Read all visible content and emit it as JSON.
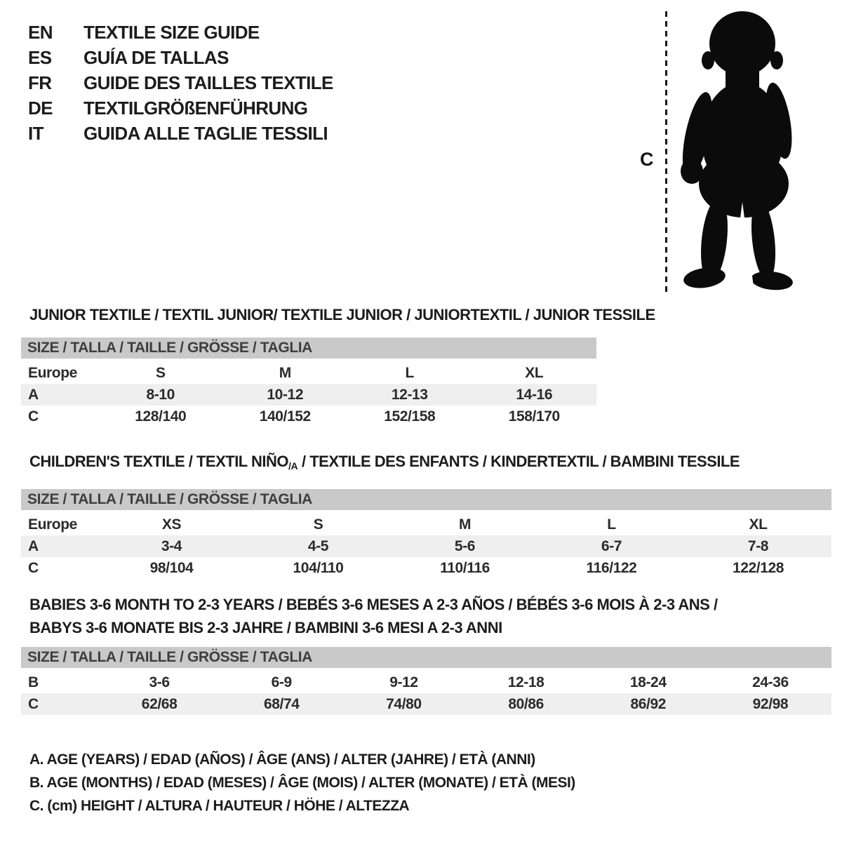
{
  "colors": {
    "background": "#ffffff",
    "text": "#1c1c1c",
    "size_bar_bg": "#c9c9c9",
    "size_bar_text": "#3e3e3e",
    "shaded_row_bg": "#efefef",
    "silhouette": "#0b0b0b"
  },
  "languages": [
    {
      "code": "EN",
      "title": "TEXTILE SIZE GUIDE"
    },
    {
      "code": "ES",
      "title": "GUÍA DE TALLAS"
    },
    {
      "code": "FR",
      "title": "GUIDE DES TAILLES TEXTILE"
    },
    {
      "code": "DE",
      "title": "TEXTILGRÖßENFÜHRUNG"
    },
    {
      "code": "IT",
      "title": "GUIDA ALLE TAGLIE TESSILI"
    }
  ],
  "figure": {
    "height_label": "C",
    "icon": "baby-silhouette"
  },
  "sections": [
    {
      "id": "junior",
      "title_lines": [
        [
          {
            "t": "JUNIOR TEXTILE / TEXTIL JUNIOR/ TEXTILE JUNIOR / JUNIORTEXTIL / JUNIOR TESSILE",
            "sub": false
          }
        ]
      ],
      "size_header": "SIZE / TALLA / TAILLE / GRÖSSE / TAGLIA",
      "rows": [
        {
          "label": "Europe",
          "values": [
            "S",
            "M",
            "L",
            "XL"
          ],
          "shaded": false
        },
        {
          "label": "A",
          "values": [
            "8-10",
            "10-12",
            "12-13",
            "14-16"
          ],
          "shaded": true
        },
        {
          "label": "C",
          "values": [
            "128/140",
            "140/152",
            "152/158",
            "158/170"
          ],
          "shaded": false
        }
      ]
    },
    {
      "id": "children",
      "title_lines": [
        [
          {
            "t": "CHILDREN'S TEXTILE / TEXTIL NIÑO",
            "sub": false
          },
          {
            "t": "/A",
            "sub": true
          },
          {
            "t": " / TEXTILE DES ENFANTS / KINDERTEXTIL / BAMBINI TESSILE",
            "sub": false
          }
        ]
      ],
      "size_header": "SIZE / TALLA / TAILLE / GRÖSSE / TAGLIA",
      "rows": [
        {
          "label": "Europe",
          "values": [
            "XS",
            "S",
            "M",
            "L",
            "XL"
          ],
          "shaded": false
        },
        {
          "label": "A",
          "values": [
            "3-4",
            "4-5",
            "5-6",
            "6-7",
            "7-8"
          ],
          "shaded": true
        },
        {
          "label": "C",
          "values": [
            "98/104",
            "104/110",
            "110/116",
            "116/122",
            "122/128"
          ],
          "shaded": false
        }
      ]
    },
    {
      "id": "babies",
      "title_lines": [
        [
          {
            "t": "BABIES 3-6 MONTH TO 2-3 YEARS / BEBÉS 3-6 MESES A 2-3 AÑOS / BÉBÉS 3-6 MOIS À 2-3 ANS /",
            "sub": false
          }
        ],
        [
          {
            "t": "BABYS 3-6 MONATE BIS 2-3 JAHRE / BAMBINI 3-6 MESI A 2-3 ANNI",
            "sub": false
          }
        ]
      ],
      "size_header": "SIZE / TALLA / TAILLE / GRÖSSE / TAGLIA",
      "rows": [
        {
          "label": "B",
          "values": [
            "3-6",
            "6-9",
            "9-12",
            "12-18",
            "18-24",
            "24-36"
          ],
          "shaded": false
        },
        {
          "label": "C",
          "values": [
            "62/68",
            "68/74",
            "74/80",
            "80/86",
            "86/92",
            "92/98"
          ],
          "shaded": true
        }
      ]
    }
  ],
  "legend": [
    "A. AGE (YEARS) / EDAD (AÑOS) / ÂGE (ANS) / ALTER (JAHRE) / ETÀ (ANNI)",
    "B. AGE (MONTHS) / EDAD (MESES) / ÂGE (MOIS) / ALTER (MONATE) / ETÀ (MESI)",
    "C. (cm) HEIGHT / ALTURA / HAUTEUR / HÖHE / ALTEZZA"
  ]
}
